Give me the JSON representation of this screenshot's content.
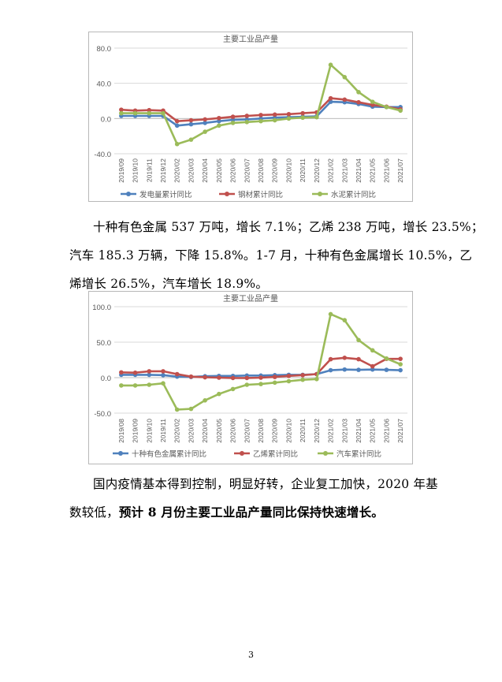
{
  "chart_data": [
    {
      "type": "line",
      "title": "主要工业品产量",
      "categories": [
        "2019/09",
        "2019/10",
        "2019/11",
        "2019/12",
        "2020/02",
        "2020/03",
        "2020/04",
        "2020/05",
        "2020/06",
        "2020/07",
        "2020/08",
        "2020/09",
        "2020/10",
        "2020/11",
        "2020/12",
        "2021/02",
        "2021/03",
        "2021/04",
        "2021/05",
        "2021/06",
        "2021/07"
      ],
      "yticks": [
        "80.0",
        "40.0",
        "0.0",
        "-40.0"
      ],
      "ylim": [
        -40,
        80
      ],
      "grid": true,
      "legend_position": "bottom",
      "series": [
        {
          "name": "发电量累计同比",
          "color": "#4f81bd",
          "values": [
            3.0,
            3.0,
            3.0,
            3.0,
            -8.0,
            -6.5,
            -5.0,
            -3.0,
            -1.5,
            -1.0,
            0.0,
            1.0,
            1.5,
            2.0,
            2.5,
            19.0,
            18.5,
            16.5,
            13.5,
            13.0,
            13.0
          ]
        },
        {
          "name": "钢材累计同比",
          "color": "#c0504d",
          "values": [
            10.0,
            9.0,
            9.5,
            9.0,
            -3.0,
            -2.0,
            -1.0,
            0.5,
            2.0,
            3.0,
            4.0,
            4.5,
            5.0,
            6.0,
            7.0,
            23.0,
            21.5,
            18.5,
            15.5,
            13.5,
            10.5
          ]
        },
        {
          "name": "水泥累计同比",
          "color": "#9bbb59",
          "values": [
            6.0,
            6.0,
            6.0,
            6.0,
            -29.0,
            -24.0,
            -15.0,
            -8.0,
            -5.0,
            -4.0,
            -3.0,
            -2.0,
            0.0,
            1.0,
            1.5,
            61.0,
            47.0,
            30.0,
            19.0,
            13.0,
            9.0
          ]
        }
      ]
    },
    {
      "type": "line",
      "title": "主要工业品产量",
      "categories": [
        "2019/08",
        "2019/09",
        "2019/10",
        "2019/11",
        "2020/02",
        "2020/03",
        "2020/04",
        "2020/05",
        "2020/06",
        "2020/07",
        "2020/08",
        "2020/09",
        "2020/10",
        "2020/11",
        "2020/12",
        "2021/02",
        "2021/03",
        "2021/04",
        "2021/05",
        "2021/06",
        "2021/07"
      ],
      "yticks": [
        "100.0",
        "50.0",
        "0.0",
        "-50.0"
      ],
      "ylim": [
        -50,
        100
      ],
      "grid": true,
      "legend_position": "bottom",
      "series": [
        {
          "name": "十种有色金属累计同比",
          "color": "#4f81bd",
          "values": [
            4.0,
            4.0,
            4.0,
            3.5,
            1.5,
            1.0,
            2.0,
            2.5,
            2.5,
            3.0,
            3.0,
            3.5,
            4.0,
            4.0,
            5.0,
            10.5,
            11.5,
            11.0,
            11.5,
            11.0,
            10.5
          ]
        },
        {
          "name": "乙烯累计同比",
          "color": "#c0504d",
          "values": [
            7.5,
            7.0,
            9.0,
            9.0,
            5.0,
            1.5,
            0.5,
            0.0,
            -0.5,
            -0.5,
            0.0,
            1.0,
            2.5,
            3.5,
            5.0,
            26.0,
            28.0,
            26.0,
            16.0,
            26.5,
            26.5
          ]
        },
        {
          "name": "汽车累计同比",
          "color": "#9bbb59",
          "values": [
            -11.0,
            -11.0,
            -10.0,
            -8.0,
            -45.0,
            -44.0,
            -32.0,
            -23.0,
            -16.0,
            -10.0,
            -9.0,
            -7.0,
            -5.0,
            -3.0,
            -2.0,
            89.5,
            81.0,
            53.0,
            38.5,
            27.0,
            18.9
          ]
        }
      ]
    }
  ],
  "text": {
    "para1_line1": "十种有色金属 537 万吨，增长 7.1%；乙烯 238 万吨，增长 23.5%；",
    "para1_line2": "汽车 185.3 万辆，下降 15.8%。1-7 月，十种有色金属增长 10.5%，乙",
    "para1_line3": "烯增长 26.5%，汽车增长 18.9%。",
    "para2_line1": "国内疫情基本得到控制，明显好转，企业复工加快，2020 年基",
    "para2_line2_normal": "数较低，",
    "para2_line2_bold": "预计 8 月份主要工业品产量同比保持快速增长。",
    "page_number": "3"
  }
}
